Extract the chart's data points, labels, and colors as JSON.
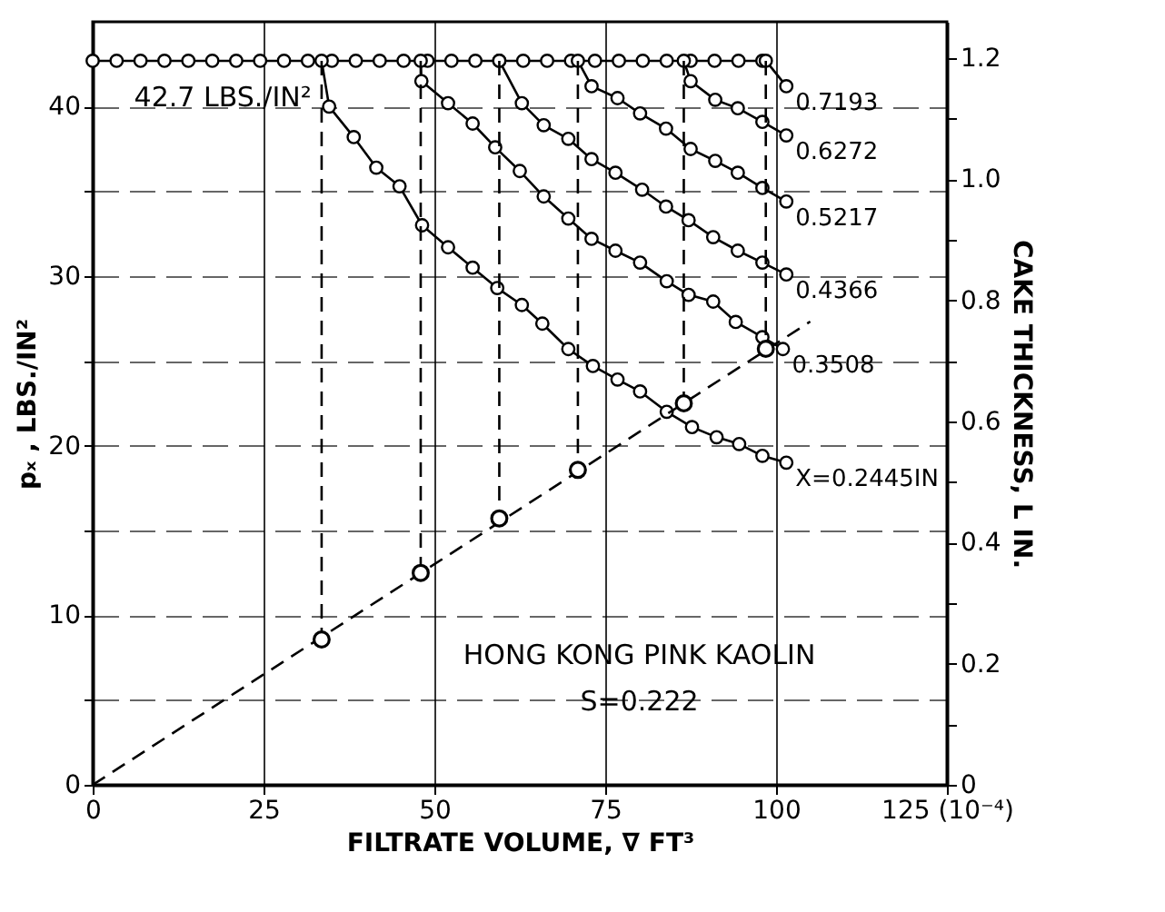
{
  "chart_data": {
    "type": "line",
    "xlabel": "FILTRATE VOLUME, ∇ FT³",
    "ylabel": "pₓ , LBS./IN²",
    "y2label": "CAKE THICKNESS, L IN.",
    "xlim": [
      0,
      125
    ],
    "xticks": [
      0,
      25,
      50,
      75,
      100,
      {
        "value": 125,
        "label": "125 (10⁻⁴)"
      }
    ],
    "ylim": [
      0,
      45
    ],
    "yticks": [
      0,
      {
        "value": 5,
        "label": null
      },
      10,
      {
        "value": 15,
        "label": null
      },
      20,
      {
        "value": 25,
        "label": null
      },
      30,
      {
        "value": 35,
        "label": null
      },
      40
    ],
    "y2lim": [
      0,
      1.26
    ],
    "y2ticks": [
      0,
      {
        "value": 0.1,
        "label": null
      },
      0.2,
      {
        "value": 0.3,
        "label": null
      },
      0.4,
      {
        "value": 0.5,
        "label": null
      },
      0.6,
      {
        "value": 0.7,
        "label": null
      },
      0.8,
      {
        "value": 0.9,
        "label": null
      },
      {
        "value": 1.0,
        "label": "1.0"
      },
      {
        "value": 1.1,
        "label": null
      },
      1.2
    ],
    "grid": true,
    "marker": "circle",
    "series": [
      {
        "color": "#000000",
        "x": [
          0,
          3.5,
          7,
          10.5,
          14,
          17.5,
          21,
          24.5,
          28,
          31.5,
          35,
          38.5,
          42,
          45.5,
          49,
          52.5,
          56,
          59.5,
          63,
          66.5,
          70,
          73.5,
          77,
          80.5,
          84,
          87.5,
          91,
          94.5,
          98
        ],
        "values": [
          42.7,
          42.7,
          42.7,
          42.7,
          42.7,
          42.7,
          42.7,
          42.7,
          42.7,
          42.7,
          42.7,
          42.7,
          42.7,
          42.7,
          42.7,
          42.7,
          42.7,
          42.7,
          42.7,
          42.7,
          42.7,
          42.7,
          42.7,
          42.7,
          42.7,
          42.7,
          42.7,
          42.7,
          42.7
        ]
      },
      {
        "name": "X=0.2445IN",
        "color": "#000000",
        "x": [
          33.5,
          34.6,
          38.2,
          41.5,
          44.9,
          48.2,
          52,
          55.6,
          59.2,
          62.8,
          65.8,
          69.6,
          73.2,
          76.8,
          80.1,
          84,
          87.7,
          91.3,
          94.6,
          98,
          101.5
        ],
        "values": [
          42.7,
          40.0,
          38.2,
          36.4,
          35.3,
          33.0,
          31.7,
          30.5,
          29.3,
          28.3,
          27.2,
          25.7,
          24.7,
          23.9,
          23.2,
          22.0,
          21.1,
          20.5,
          20.1,
          19.4,
          19.0
        ]
      },
      {
        "name": "0.3508",
        "color": "#000000",
        "x": [
          48,
          48.1,
          52,
          55.6,
          58.9,
          62.5,
          66,
          69.6,
          73,
          76.5,
          80.1,
          84,
          87.2,
          90.8,
          94.1,
          98,
          101
        ],
        "values": [
          42.7,
          41.5,
          40.2,
          39.0,
          37.6,
          36.2,
          34.7,
          33.4,
          32.2,
          31.5,
          30.8,
          29.7,
          28.9,
          28.5,
          27.3,
          26.4,
          25.7
        ]
      },
      {
        "name": "0.4366",
        "color": "#000000",
        "x": [
          59.5,
          62.8,
          66,
          69.6,
          73,
          76.5,
          80.4,
          83.9,
          87.2,
          90.8,
          94.4,
          98,
          101.5
        ],
        "values": [
          42.7,
          40.2,
          38.9,
          38.1,
          36.9,
          36.1,
          35.1,
          34.1,
          33.3,
          32.3,
          31.5,
          30.8,
          30.1
        ]
      },
      {
        "name": "0.5217",
        "color": "#000000",
        "x": [
          71,
          73,
          76.8,
          80.1,
          83.9,
          87.5,
          91.1,
          94.4,
          98,
          101.5
        ],
        "values": [
          42.7,
          41.2,
          40.5,
          39.6,
          38.7,
          37.5,
          36.8,
          36.1,
          35.2,
          34.4
        ]
      },
      {
        "name": "0.6272",
        "color": "#000000",
        "x": [
          86.5,
          87.5,
          91.1,
          94.4,
          98,
          101.5
        ],
        "values": [
          42.7,
          41.5,
          40.4,
          39.9,
          39.1,
          38.3
        ]
      },
      {
        "name": "0.7193",
        "color": "#000000",
        "x": [
          98.5,
          101.5
        ],
        "values": [
          42.7,
          41.2
        ]
      },
      {
        "color": "#000000",
        "marker": "none",
        "line_style": "dashed",
        "x": [
          33.5,
          33.5
        ],
        "values": [
          42.7,
          8.7
        ]
      },
      {
        "color": "#000000",
        "marker": "none",
        "line_style": "dashed",
        "x": [
          48,
          48
        ],
        "values": [
          42.7,
          12.5
        ]
      },
      {
        "color": "#000000",
        "marker": "none",
        "line_style": "dashed",
        "x": [
          59.5,
          59.5
        ],
        "values": [
          42.7,
          15.6
        ]
      },
      {
        "color": "#000000",
        "marker": "none",
        "line_style": "dashed",
        "x": [
          71,
          71
        ],
        "values": [
          42.7,
          18.6
        ]
      },
      {
        "color": "#000000",
        "marker": "none",
        "line_style": "dashed",
        "x": [
          86.5,
          86.5
        ],
        "values": [
          42.7,
          22.4
        ]
      },
      {
        "color": "#000000",
        "marker": "none",
        "line_style": "dashed",
        "x": [
          98.5,
          98.5
        ],
        "values": [
          42.7,
          25.7
        ]
      },
      {
        "color": "#000000",
        "axis": "y2",
        "marker": "none",
        "line_style": "dashed",
        "x": [
          0,
          105
        ],
        "values": [
          0,
          0.765
        ]
      },
      {
        "type": "scatter",
        "color": "#000000",
        "axis": "y2",
        "x": [
          33.5,
          48,
          59.5,
          71,
          86.5,
          98.5
        ],
        "values": [
          0.24,
          0.35,
          0.44,
          0.52,
          0.63,
          0.72
        ]
      }
    ],
    "annotations": [
      {
        "text": "42.7 LBS./IN²",
        "x": 5,
        "y": 42.7
      },
      "HONG KONG PINK KAOLIN",
      "S=0.222"
    ]
  }
}
